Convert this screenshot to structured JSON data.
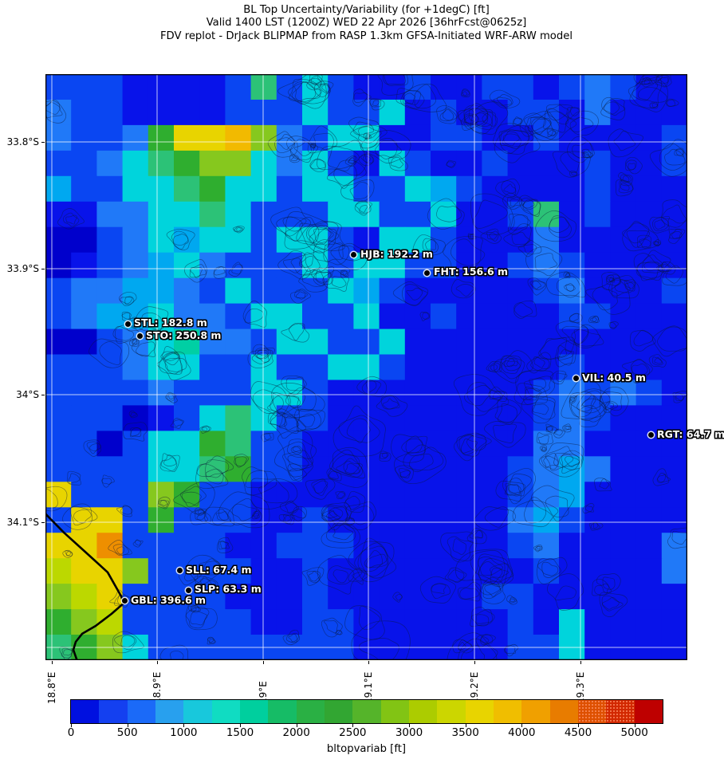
{
  "header": {
    "title_line1": "BL Top Uncertainty/Variability (for +1degC) [ft]",
    "title_line2": "Valid 1400 LST (1200Z) WED 22 Apr 2026 [36hrFcst@0625z]",
    "title_line3": "FDV replot - DrJack BLIPMAP from RASP 1.3km GFSA-Initiated WRF-ARW model"
  },
  "chart_data": {
    "type": "heatmap",
    "title": "BL Top Uncertainty/Variability (for +1degC) [ft]",
    "subtitle": "Valid 1400 LST (1200Z) WED 22 Apr 2026 [36hrFcst@0625z]",
    "source_line": "FDV replot - DrJack BLIPMAP from RASP 1.3km GFSA-Initiated WRF-ARW model",
    "x_ticks": [
      {
        "label": "18.8°E",
        "f": 0.0099
      },
      {
        "label": "18.9°E",
        "f": 0.1739
      },
      {
        "label": "19°E",
        "f": 0.3391
      },
      {
        "label": "19.1°E",
        "f": 0.5031
      },
      {
        "label": "19.2°E",
        "f": 0.6683
      },
      {
        "label": "19.3°E",
        "f": 0.8335
      }
    ],
    "y_ticks": [
      {
        "label": "33.8°S",
        "f": 0.1156
      },
      {
        "label": "33.9°S",
        "f": 0.332
      },
      {
        "label": "34°S",
        "f": 0.5469
      },
      {
        "label": "34.1°S",
        "f": 0.7646
      }
    ],
    "extra_y_gridlines_f": [
      0.9782
    ],
    "stations": [
      {
        "code": "HJB",
        "label": "HJB: 192.2 m",
        "fx": 0.4807,
        "fy": 0.3088
      },
      {
        "code": "FHT",
        "label": "FHT: 156.6 m",
        "fx": 0.595,
        "fy": 0.3388
      },
      {
        "code": "STL",
        "label": "STL: 182.8 m",
        "fx": 0.128,
        "fy": 0.4259
      },
      {
        "code": "STO",
        "label": "STO: 250.8 m",
        "fx": 0.1466,
        "fy": 0.4476
      },
      {
        "code": "VIL",
        "label": "VIL: 40.5 m",
        "fx": 0.8261,
        "fy": 0.5197
      },
      {
        "code": "RGT",
        "label": "RGT: 64.7 m",
        "fx": 0.9429,
        "fy": 0.6163
      },
      {
        "code": "SLL",
        "label": "SLL: 67.4 m",
        "fx": 0.2087,
        "fy": 0.8476
      },
      {
        "code": "SLP",
        "label": "SLP: 63.3 m",
        "fx": 0.2224,
        "fy": 0.8803
      },
      {
        "code": "GBL",
        "label": "GBL: 396.6 m",
        "fx": 0.123,
        "fy": 0.8993
      }
    ],
    "coastline_f": [
      [
        -0.002,
        0.748
      ],
      [
        0.0286,
        0.782
      ],
      [
        0.0658,
        0.819
      ],
      [
        0.0969,
        0.85
      ],
      [
        0.118,
        0.891
      ],
      [
        0.1217,
        0.903
      ],
      [
        0.103,
        0.921
      ],
      [
        0.0783,
        0.9415
      ],
      [
        0.0571,
        0.955
      ],
      [
        0.0472,
        0.9687
      ],
      [
        0.0435,
        0.9823
      ],
      [
        0.0497,
        1.002
      ]
    ],
    "colorbar": {
      "label": "bltopvariab [ft]",
      "vmin": 0,
      "vmax": 5250,
      "step": 250,
      "tick_labels": [
        "0",
        "500",
        "1000",
        "1500",
        "2000",
        "2500",
        "3000",
        "3500",
        "4000",
        "4500",
        "5000"
      ],
      "stipple_from": 4500,
      "stipple_to": 5000,
      "colors": [
        "#0010e0",
        "#1440f0",
        "#1b6af8",
        "#28a0ee",
        "#18c8dc",
        "#10dcc2",
        "#00cf9e",
        "#16bc66",
        "#2ab044",
        "#32a632",
        "#55b42a",
        "#82c414",
        "#accc00",
        "#ccd600",
        "#e8d400",
        "#f0be00",
        "#f0a000",
        "#e87c00",
        "#de5000",
        "#d22800",
        "#be0000"
      ]
    },
    "map_grid": {
      "cols": 25,
      "rows": 23,
      "palette": {
        "0": "#0000cc",
        "1": "#0813ea",
        "2": "#0a46f2",
        "3": "#2079f8",
        "4": "#00a8f0",
        "5": "#00d4dc",
        "6": "#00cfa4",
        "7": "#2cc277",
        "8": "#2fae2f",
        "9": "#86c81e",
        "a": "#bcd800",
        "b": "#e8d400",
        "c": "#f2ba00",
        "d": "#ee8f00"
      },
      "rows_data": [
        "2221111272521121122123211",
        "3221111222522512112213111",
        "32238bbc93255112211211112",
        "2235789953521521121112112",
        "4225578552552254211112111",
        "1133557522255225112712111",
        "0023545525521552111311111",
        "0123453222525522112321111",
        "2334432522254211111231112",
        "2344533255225112111122111",
        "0023563325522511111111111",
        "2223552252255211111121111",
        "2222322255211111111232321",
        "2220125752211111111232111",
        "2202558722111111111331111",
        "2222557822111111112343111",
        "b222982211111111112341111",
        "2bb2822211211111113421111",
        "bbd2222112221111112311113",
        "abb9222211211111111211113",
        "9ab2222111211111122111111",
        "89a2222211221111112151111",
        "7895222222221111112251111"
      ]
    }
  }
}
